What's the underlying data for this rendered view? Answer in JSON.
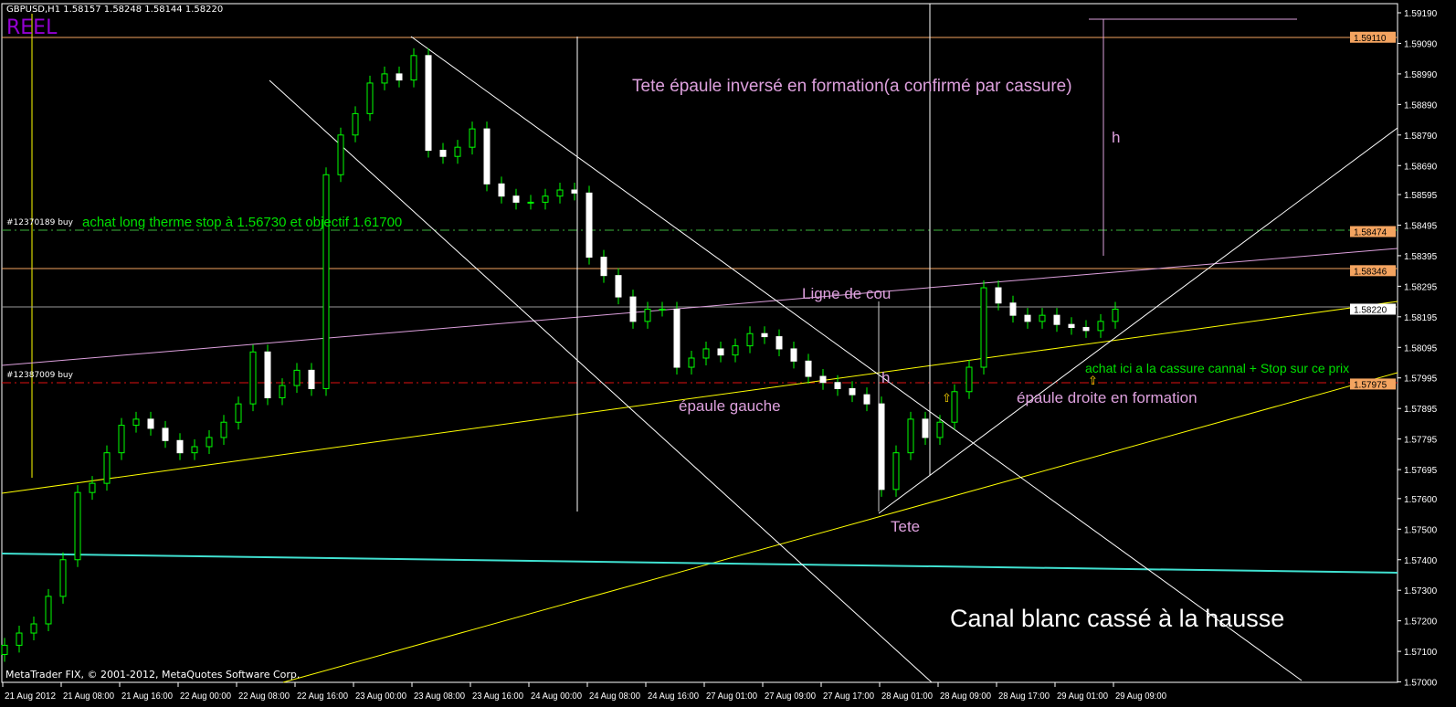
{
  "header": {
    "symbol_info": "GBPUSD,H1  1.58157 1.58248 1.58144 1.58220",
    "mode_label": "REEL"
  },
  "footer": {
    "copyright": "MetaTrader FIX, © 2001-2012, MetaQuotes Software Corp."
  },
  "annotations": {
    "title": "Tete épaule inversé en formation(a confirmé par cassure)",
    "h_top": "h",
    "h_mid": "h",
    "neckline": "Ligne de cou",
    "left_shoulder": "épaule gauche",
    "right_shoulder": "épaule droite en formation",
    "head": "Tete",
    "buy_here": "achat ici a la cassure cannal + Stop sur ce prix",
    "long_term": "achat long therme stop à 1.56730 et objectif 1.61700",
    "channel": "Canal blanc cassé à la hausse",
    "arrow": "⇧"
  },
  "orders": [
    {
      "label": "#12370189 buy",
      "price": 1.58474,
      "color": "#3cb43c"
    },
    {
      "label": "#12387009 buy",
      "price": 1.57975,
      "color": "#e01010"
    }
  ],
  "chart_data": {
    "type": "candlestick",
    "symbol": "GBPUSD",
    "timeframe": "H1",
    "ylim": [
      1.57,
      1.592
    ],
    "y_ticks": [
      "1.59190",
      "1.59090",
      "1.58990",
      "1.58890",
      "1.58790",
      "1.58690",
      "1.58595",
      "1.58495",
      "1.58395",
      "1.58295",
      "1.58195",
      "1.58095",
      "1.57995",
      "1.57895",
      "1.57795",
      "1.57695",
      "1.57600",
      "1.57500",
      "1.57400",
      "1.57300",
      "1.57200",
      "1.57100",
      "1.57000"
    ],
    "x_ticks": [
      "21 Aug 2012",
      "21 Aug 08:00",
      "21 Aug 16:00",
      "22 Aug 00:00",
      "22 Aug 08:00",
      "22 Aug 16:00",
      "23 Aug 00:00",
      "23 Aug 08:00",
      "23 Aug 16:00",
      "24 Aug 00:00",
      "24 Aug 08:00",
      "24 Aug 16:00",
      "27 Aug 01:00",
      "27 Aug 09:00",
      "27 Aug 17:00",
      "28 Aug 01:00",
      "28 Aug 09:00",
      "28 Aug 17:00",
      "29 Aug 01:00",
      "29 Aug 09:00"
    ],
    "price_labels": [
      {
        "text": "1.59110",
        "color": "#f4a460"
      },
      {
        "text": "1.58474",
        "color": "#f4a460"
      },
      {
        "text": "1.58346",
        "color": "#f4a460"
      },
      {
        "text": "1.58220",
        "color": "#ffffff"
      },
      {
        "text": "1.57975",
        "color": "#f4a460"
      }
    ],
    "closes": [
      1.5712,
      1.5716,
      1.5719,
      1.5728,
      1.574,
      1.5762,
      1.5765,
      1.5775,
      1.5784,
      1.5786,
      1.5783,
      1.5779,
      1.5775,
      1.5777,
      1.578,
      1.5785,
      1.5791,
      1.5808,
      1.5793,
      1.5797,
      1.5802,
      1.5796,
      1.5866,
      1.5879,
      1.5886,
      1.5896,
      1.5899,
      1.5897,
      1.5905,
      1.5874,
      1.5872,
      1.5875,
      1.5881,
      1.5863,
      1.5859,
      1.5857,
      1.5857,
      1.5859,
      1.5861,
      1.586,
      1.5839,
      1.5833,
      1.5826,
      1.5818,
      1.5822,
      1.5822,
      1.5803,
      1.5806,
      1.5809,
      1.5807,
      1.581,
      1.5814,
      1.5813,
      1.5809,
      1.5805,
      1.58,
      1.5798,
      1.5796,
      1.5794,
      1.5791,
      1.5763,
      1.5775,
      1.5786,
      1.578,
      1.5785,
      1.5795,
      1.5803,
      1.5829,
      1.5824,
      1.582,
      1.5818,
      1.582,
      1.5817,
      1.5816,
      1.5815,
      1.5818,
      1.5822
    ],
    "colors": {
      "bull": "#00ff00",
      "bear": "#ffffff",
      "wick": "#00ff00"
    }
  }
}
